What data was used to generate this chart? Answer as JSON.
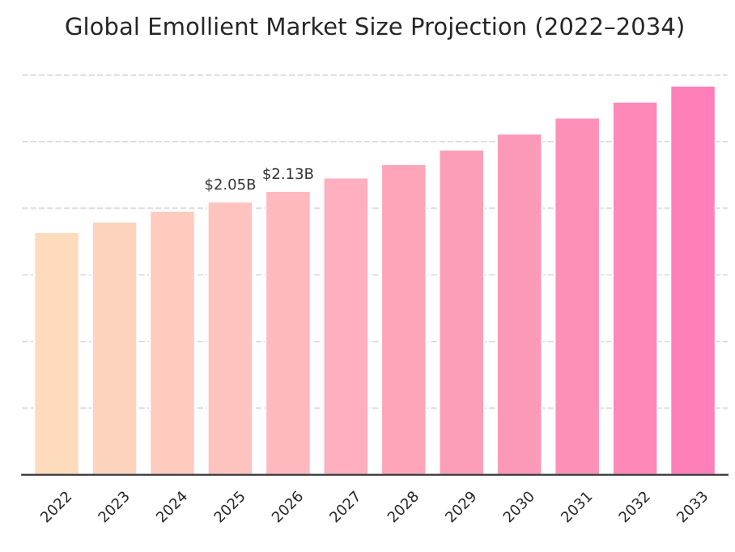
{
  "chart_data": {
    "type": "bar",
    "title": "Global Emollient Market Size Projection (2022–2034)",
    "categories": [
      "2022",
      "2023",
      "2024",
      "2025",
      "2026",
      "2027",
      "2028",
      "2029",
      "2030",
      "2031",
      "2032",
      "2033"
    ],
    "values": [
      1.82,
      1.9,
      1.98,
      2.05,
      2.13,
      2.23,
      2.33,
      2.44,
      2.56,
      2.68,
      2.8,
      2.92
    ],
    "value_labels": [
      null,
      null,
      null,
      "$2.05B",
      "$2.13B",
      null,
      null,
      null,
      null,
      null,
      null,
      null
    ],
    "colors": [
      "#fddbbd",
      "#fdd3bd",
      "#fecbbe",
      "#fec3be",
      "#ffb9be",
      "#ffafbd",
      "#fea5ba",
      "#fd9eb9",
      "#fc98b8",
      "#fd90b8",
      "#fe88b8",
      "#ff80b8"
    ],
    "yticks": [
      {
        "value": 0.5,
        "label": null
      },
      {
        "value": 1.0,
        "label": null
      },
      {
        "value": 1.5,
        "label": null
      },
      {
        "value": 2.0,
        "label": null
      },
      {
        "value": 2.5,
        "label": null
      },
      {
        "value": 3.0,
        "label": null
      }
    ],
    "grid": "y",
    "legend": false
  }
}
